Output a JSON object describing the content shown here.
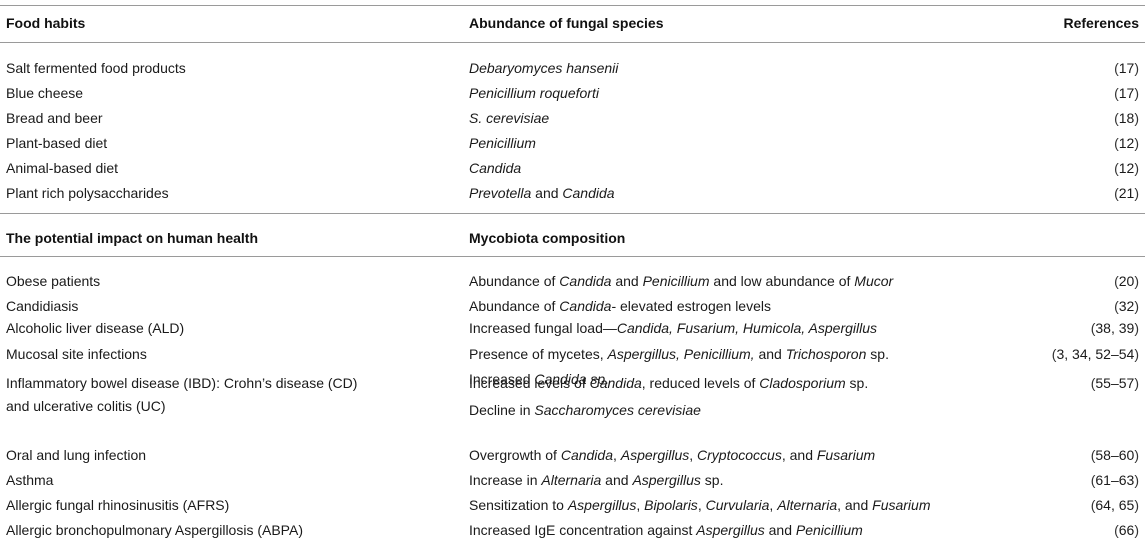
{
  "section1": {
    "headers": {
      "col1": "Food habits",
      "col2": "Abundance of fungal species",
      "col3": "References"
    },
    "rows": [
      {
        "habit": "Salt fermented food products",
        "species": "Debaryomyces hansenii",
        "ref": "17"
      },
      {
        "habit": "Blue cheese",
        "species": "Penicillium roqueforti",
        "ref": "17"
      },
      {
        "habit": "Bread and beer",
        "species": "S. cerevisiae",
        "ref": "18"
      },
      {
        "habit": "Plant-based diet",
        "species": "Penicillium",
        "ref": "12"
      },
      {
        "habit": "Animal-based diet",
        "species": "Candida",
        "ref": "12"
      },
      {
        "habit": "Plant rich polysaccharides",
        "species_a": "Prevotella",
        "species_mid": " and ",
        "species_b": "Candida",
        "ref": "21"
      }
    ]
  },
  "section2": {
    "headers": {
      "col1": "The potential impact on human health",
      "col2": "Mycobiota composition"
    },
    "rows": [
      {
        "impact": "Obese patients",
        "comp": [
          "Abundance of ",
          "Candida",
          " and ",
          "Penicillium",
          " and low abundance of ",
          "Mucor"
        ],
        "ref": "20"
      },
      {
        "impact": "Candidiasis",
        "comp": [
          "Abundance of ",
          "Candida",
          "- elevated estrogen levels"
        ],
        "ref": "32"
      },
      {
        "impact": "Alcoholic liver disease (ALD)",
        "comp": [
          "Increased fungal load—",
          "Candida, Fusarium, Humicola, Aspergillus"
        ],
        "ref": "38, 39"
      },
      {
        "impact": "Mucosal site infections",
        "comp": [
          "Presence of mycetes, ",
          "Aspergillus, Penicillium,",
          " and ",
          "Trichosporon",
          " sp."
        ],
        "comp2": [
          "Increased ",
          "Candida sp."
        ],
        "ref": "3, 34, 52–54"
      },
      {
        "impact": "Inflammatory bowel disease (IBD): Crohn’s disease (CD)",
        "impact2": "and ulcerative colitis (UC)",
        "comp": [
          "Increased levels of ",
          "Candida",
          ", reduced levels of ",
          "Cladosporium",
          " sp."
        ],
        "comp2": [
          "Decline in ",
          "Saccharomyces cerevisiae"
        ],
        "ref": "55–57"
      },
      {
        "impact": "Oral and lung infection",
        "comp": [
          "Overgrowth of ",
          "Candida",
          ", ",
          "Aspergillus",
          ", ",
          "Cryptococcus",
          ", and ",
          "Fusarium"
        ],
        "ref": "58–60"
      },
      {
        "impact": "Asthma",
        "comp": [
          "Increase in ",
          "Alternaria",
          " and ",
          "Aspergillus",
          " sp."
        ],
        "ref": "61–63"
      },
      {
        "impact": "Allergic fungal rhinosinusitis (AFRS)",
        "comp": [
          "Sensitization to ",
          "Aspergillus",
          ", ",
          "Bipolaris",
          ", ",
          "Curvularia",
          ", ",
          "Alternaria",
          ", and ",
          "Fusarium"
        ],
        "ref": "64, 65"
      },
      {
        "impact": "Allergic bronchopulmonary Aspergillosis (ABPA)",
        "comp": [
          "Increased IgE concentration against ",
          "Aspergillus",
          " and ",
          "Penicillium"
        ],
        "ref": "66"
      }
    ]
  },
  "ref_open": "(",
  "ref_close": ")"
}
